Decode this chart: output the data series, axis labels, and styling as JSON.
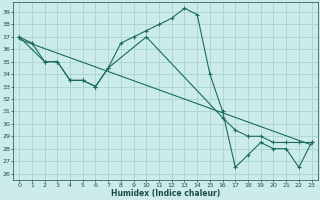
{
  "xlabel": "Humidex (Indice chaleur)",
  "bg_color": "#ccecea",
  "grid_color": "#aad4ce",
  "line_color": "#1a6b5e",
  "xlim": [
    -0.5,
    23.5
  ],
  "ylim": [
    25.5,
    39.8
  ],
  "xticks": [
    0,
    1,
    2,
    3,
    4,
    5,
    6,
    7,
    8,
    9,
    10,
    11,
    12,
    13,
    14,
    15,
    16,
    17,
    18,
    19,
    20,
    21,
    22,
    23
  ],
  "yticks": [
    26,
    27,
    28,
    29,
    30,
    31,
    32,
    33,
    34,
    35,
    36,
    37,
    38,
    39
  ],
  "curve1_x": [
    0,
    1,
    2,
    3,
    4,
    5,
    6,
    7,
    8,
    9,
    10,
    11,
    12,
    13,
    14,
    15,
    16,
    17,
    18,
    19,
    20,
    21,
    22,
    23
  ],
  "curve1_y": [
    37.0,
    36.5,
    35.0,
    35.0,
    33.5,
    33.5,
    33.0,
    34.5,
    36.5,
    37.0,
    37.5,
    38.0,
    38.5,
    39.3,
    38.8,
    34.0,
    31.0,
    26.5,
    27.5,
    28.5,
    28.0,
    28.0,
    26.5,
    28.5
  ],
  "curve2_x": [
    0,
    2,
    3,
    4,
    5,
    6,
    7,
    10,
    16,
    17,
    18,
    19,
    20,
    21,
    22,
    23
  ],
  "curve2_y": [
    37.0,
    35.0,
    35.0,
    33.5,
    33.5,
    33.0,
    34.5,
    37.0,
    30.5,
    29.5,
    29.0,
    29.0,
    28.5,
    28.5,
    28.5,
    28.5
  ],
  "trend_x": [
    0,
    23
  ],
  "trend_y": [
    36.8,
    28.3
  ]
}
